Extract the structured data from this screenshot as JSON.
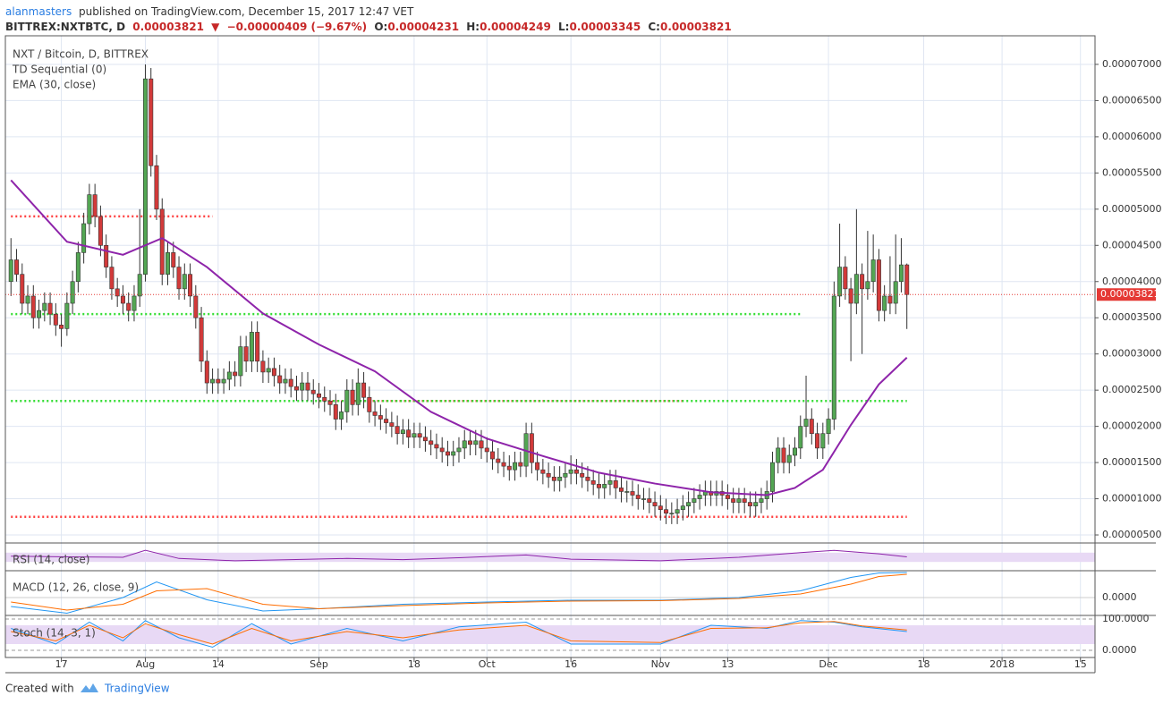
{
  "header": {
    "user": "alanmasters",
    "published": "published on TradingView.com, December 15, 2017 12:47 VET",
    "symbol": "BITTREX:NXTBTC, D",
    "last": "0.00003821",
    "arrow": "▼",
    "change": "−0.00000409 (−9.67%)",
    "o_label": "O:",
    "o": "0.00004231",
    "h_label": "H:",
    "h": "0.00004249",
    "l_label": "L:",
    "l": "0.00003345",
    "c_label": "C:",
    "c": "0.00003821"
  },
  "footer": {
    "created": "Created with",
    "brand": "TradingView"
  },
  "chart_data": {
    "type": "candlestick",
    "title": "NXT / Bitcoin, D, BITTREX",
    "study": "TD Sequential (0)",
    "up_color": "#53a653",
    "down_color": "#d23a3a",
    "grid": true,
    "xlim": [
      -1,
      193.6
    ],
    "ylim": [
      3.89e-06,
      7.395e-05
    ],
    "xticks": [
      {
        "value": 9,
        "label": "17"
      },
      {
        "value": 24,
        "label": "Aug"
      },
      {
        "value": 37,
        "label": "14"
      },
      {
        "value": 55,
        "label": "Sep"
      },
      {
        "value": 72,
        "label": "18"
      },
      {
        "value": 85,
        "label": "Oct"
      },
      {
        "value": 100,
        "label": "16"
      },
      {
        "value": 116,
        "label": "Nov"
      },
      {
        "value": 128,
        "label": "13"
      },
      {
        "value": 146,
        "label": "Dec"
      },
      {
        "value": 163,
        "label": "18"
      },
      {
        "value": 177,
        "label": "2018"
      },
      {
        "value": 191,
        "label": "15"
      }
    ],
    "yticks": [
      {
        "value": 5e-06,
        "label": "0.00000500"
      },
      {
        "value": 1e-05,
        "label": "0.00001000"
      },
      {
        "value": 1.5e-05,
        "label": "0.00001500"
      },
      {
        "value": 2e-05,
        "label": "0.00002000"
      },
      {
        "value": 2.5e-05,
        "label": "0.00002500"
      },
      {
        "value": 3e-05,
        "label": "0.00003000"
      },
      {
        "value": 3.5e-05,
        "label": "0.00003500"
      },
      {
        "value": 4e-05,
        "label": "0.00004000"
      },
      {
        "value": 4.5e-05,
        "label": "0.00004500"
      },
      {
        "value": 5e-05,
        "label": "0.00005000"
      },
      {
        "value": 5.5e-05,
        "label": "0.00005500"
      },
      {
        "value": 6e-05,
        "label": "0.00006000"
      },
      {
        "value": 6.5e-05,
        "label": "0.00006500"
      },
      {
        "value": 7e-05,
        "label": "0.00007000"
      }
    ],
    "last_price": {
      "value": 3.821e-05,
      "label": "0.00003821",
      "color": "#e53935"
    },
    "x": [
      0,
      1,
      2,
      3,
      4,
      5,
      6,
      7,
      8,
      9,
      10,
      11,
      12,
      13,
      14,
      15,
      16,
      17,
      18,
      19,
      20,
      21,
      22,
      23,
      24,
      25,
      26,
      27,
      28,
      29,
      30,
      31,
      32,
      33,
      34,
      35,
      36,
      37,
      38,
      39,
      40,
      41,
      42,
      43,
      44,
      45,
      46,
      47,
      48,
      49,
      50,
      51,
      52,
      53,
      54,
      55,
      56,
      57,
      58,
      59,
      60,
      61,
      62,
      63,
      64,
      65,
      66,
      67,
      68,
      69,
      70,
      71,
      72,
      73,
      74,
      75,
      76,
      77,
      78,
      79,
      80,
      81,
      82,
      83,
      84,
      85,
      86,
      87,
      88,
      89,
      90,
      91,
      92,
      93,
      94,
      95,
      96,
      97,
      98,
      99,
      100,
      101,
      102,
      103,
      104,
      105,
      106,
      107,
      108,
      109,
      110,
      111,
      112,
      113,
      114,
      115,
      116,
      117,
      118,
      119,
      120,
      121,
      122,
      123,
      124,
      125,
      126,
      127,
      128,
      129,
      130,
      131,
      132,
      133,
      134,
      135,
      136,
      137,
      138,
      139,
      140,
      141,
      142,
      143,
      144,
      145,
      146,
      147,
      148,
      149,
      150,
      151,
      152,
      153,
      154,
      155,
      156,
      157,
      158,
      159,
      160
    ],
    "open": [
      4e-05,
      4.3e-05,
      4.1e-05,
      3.7e-05,
      3.8e-05,
      3.5e-05,
      3.6e-05,
      3.7e-05,
      3.55e-05,
      3.4e-05,
      3.35e-05,
      3.7e-05,
      4e-05,
      4.4e-05,
      4.8e-05,
      5.2e-05,
      4.9e-05,
      4.5e-05,
      4.2e-05,
      3.9e-05,
      3.8e-05,
      3.7e-05,
      3.6e-05,
      3.8e-05,
      4.1e-05,
      6.8e-05,
      5.6e-05,
      5e-05,
      4.1e-05,
      4.4e-05,
      4.2e-05,
      3.9e-05,
      4.1e-05,
      3.8e-05,
      3.5e-05,
      2.9e-05,
      2.6e-05,
      2.65e-05,
      2.6e-05,
      2.65e-05,
      2.75e-05,
      2.7e-05,
      3.1e-05,
      2.9e-05,
      3.3e-05,
      2.9e-05,
      2.75e-05,
      2.8e-05,
      2.7e-05,
      2.6e-05,
      2.65e-05,
      2.55e-05,
      2.5e-05,
      2.6e-05,
      2.5e-05,
      2.45e-05,
      2.4e-05,
      2.35e-05,
      2.3e-05,
      2.1e-05,
      2.2e-05,
      2.5e-05,
      2.3e-05,
      2.6e-05,
      2.4e-05,
      2.2e-05,
      2.15e-05,
      2.1e-05,
      2.05e-05,
      2e-05,
      1.9e-05,
      1.95e-05,
      1.85e-05,
      1.9e-05,
      1.85e-05,
      1.8e-05,
      1.75e-05,
      1.7e-05,
      1.65e-05,
      1.6e-05,
      1.65e-05,
      1.7e-05,
      1.8e-05,
      1.75e-05,
      1.8e-05,
      1.7e-05,
      1.65e-05,
      1.55e-05,
      1.5e-05,
      1.45e-05,
      1.4e-05,
      1.5e-05,
      1.45e-05,
      1.9e-05,
      1.5e-05,
      1.4e-05,
      1.35e-05,
      1.3e-05,
      1.25e-05,
      1.3e-05,
      1.35e-05,
      1.4e-05,
      1.35e-05,
      1.3e-05,
      1.25e-05,
      1.2e-05,
      1.15e-05,
      1.2e-05,
      1.25e-05,
      1.15e-05,
      1.1e-05,
      1.1e-05,
      1.05e-05,
      1e-05,
      1e-05,
      9.5e-06,
      9e-06,
      8.5e-06,
      8e-06,
      8e-06,
      8.5e-06,
      9e-06,
      9.5e-06,
      1e-05,
      1.05e-05,
      1.1e-05,
      1.05e-05,
      1.1e-05,
      1.05e-05,
      1e-05,
      9.5e-06,
      1e-05,
      9.5e-06,
      9e-06,
      9.5e-06,
      1e-05,
      1.1e-05,
      1.5e-05,
      1.7e-05,
      1.5e-05,
      1.6e-05,
      1.7e-05,
      2e-05,
      2.1e-05,
      1.9e-05,
      1.7e-05,
      1.9e-05,
      2.1e-05,
      3.8e-05,
      4.2e-05,
      3.9e-05,
      3.7e-05,
      4.1e-05,
      3.9e-05,
      4e-05,
      4.3e-05,
      3.6e-05,
      3.8e-05,
      3.7e-05,
      4e-05,
      4.231e-05
    ],
    "high": [
      4.6e-05,
      4.45e-05,
      4.25e-05,
      3.95e-05,
      3.95e-05,
      3.75e-05,
      3.85e-05,
      3.85e-05,
      3.7e-05,
      3.55e-05,
      3.85e-05,
      4.15e-05,
      4.55e-05,
      4.95e-05,
      5.35e-05,
      5.35e-05,
      5.05e-05,
      4.65e-05,
      4.35e-05,
      4.05e-05,
      3.95e-05,
      3.85e-05,
      3.95e-05,
      5e-05,
      7e-05,
      6.95e-05,
      5.75e-05,
      5.15e-05,
      4.55e-05,
      4.55e-05,
      4.35e-05,
      4.25e-05,
      4.25e-05,
      3.95e-05,
      3.65e-05,
      3.05e-05,
      2.8e-05,
      2.8e-05,
      2.8e-05,
      2.9e-05,
      2.9e-05,
      3.25e-05,
      3.25e-05,
      3.45e-05,
      3.45e-05,
      3.05e-05,
      2.95e-05,
      2.95e-05,
      2.85e-05,
      2.8e-05,
      2.8e-05,
      2.7e-05,
      2.75e-05,
      2.75e-05,
      2.65e-05,
      2.6e-05,
      2.55e-05,
      2.5e-05,
      2.45e-05,
      2.35e-05,
      2.65e-05,
      2.65e-05,
      2.8e-05,
      2.75e-05,
      2.55e-05,
      2.35e-05,
      2.3e-05,
      2.25e-05,
      2.2e-05,
      2.15e-05,
      2.1e-05,
      2.1e-05,
      2.05e-05,
      2.05e-05,
      2e-05,
      1.95e-05,
      1.9e-05,
      1.85e-05,
      1.8e-05,
      1.8e-05,
      1.85e-05,
      1.95e-05,
      1.95e-05,
      1.95e-05,
      1.95e-05,
      1.85e-05,
      1.8e-05,
      1.7e-05,
      1.65e-05,
      1.6e-05,
      1.65e-05,
      1.65e-05,
      2.05e-05,
      2.05e-05,
      1.65e-05,
      1.55e-05,
      1.5e-05,
      1.45e-05,
      1.45e-05,
      1.5e-05,
      1.6e-05,
      1.55e-05,
      1.5e-05,
      1.45e-05,
      1.4e-05,
      1.35e-05,
      1.35e-05,
      1.4e-05,
      1.4e-05,
      1.3e-05,
      1.25e-05,
      1.25e-05,
      1.2e-05,
      1.15e-05,
      1.15e-05,
      1.1e-05,
      1.05e-05,
      1e-05,
      9.5e-06,
      1e-05,
      1.05e-05,
      1.1e-05,
      1.15e-05,
      1.2e-05,
      1.25e-05,
      1.25e-05,
      1.25e-05,
      1.25e-05,
      1.2e-05,
      1.15e-05,
      1.15e-05,
      1.15e-05,
      1.1e-05,
      1.1e-05,
      1.15e-05,
      1.25e-05,
      1.65e-05,
      1.85e-05,
      1.85e-05,
      1.75e-05,
      1.85e-05,
      2.15e-05,
      2.7e-05,
      2.25e-05,
      2.05e-05,
      2.05e-05,
      2.25e-05,
      4e-05,
      4.8e-05,
      4.35e-05,
      4.05e-05,
      5e-05,
      4.25e-05,
      4.7e-05,
      4.65e-05,
      4.45e-05,
      3.95e-05,
      4.35e-05,
      4.65e-05,
      4.6e-05,
      4.249e-05
    ],
    "low": [
      3.8e-05,
      4e-05,
      3.55e-05,
      3.55e-05,
      3.35e-05,
      3.35e-05,
      3.45e-05,
      3.4e-05,
      3.25e-05,
      3.1e-05,
      3.25e-05,
      3.55e-05,
      3.85e-05,
      4.25e-05,
      4.65e-05,
      4.75e-05,
      4.35e-05,
      4.05e-05,
      3.75e-05,
      3.65e-05,
      3.55e-05,
      3.45e-05,
      3.45e-05,
      3.65e-05,
      4e-05,
      5.45e-05,
      4.85e-05,
      3.95e-05,
      3.95e-05,
      4.05e-05,
      3.75e-05,
      3.75e-05,
      3.65e-05,
      3.35e-05,
      2.75e-05,
      2.45e-05,
      2.45e-05,
      2.45e-05,
      2.45e-05,
      2.5e-05,
      2.55e-05,
      2.55e-05,
      2.75e-05,
      2.75e-05,
      2.75e-05,
      2.6e-05,
      2.6e-05,
      2.55e-05,
      2.45e-05,
      2.45e-05,
      2.4e-05,
      2.35e-05,
      2.35e-05,
      2.35e-05,
      2.3e-05,
      2.25e-05,
      2.2e-05,
      2.15e-05,
      1.95e-05,
      1.95e-05,
      2.05e-05,
      2.15e-05,
      2.15e-05,
      2.25e-05,
      2.05e-05,
      2e-05,
      1.95e-05,
      1.9e-05,
      1.85e-05,
      1.75e-05,
      1.75e-05,
      1.7e-05,
      1.7e-05,
      1.7e-05,
      1.65e-05,
      1.6e-05,
      1.55e-05,
      1.5e-05,
      1.45e-05,
      1.45e-05,
      1.5e-05,
      1.55e-05,
      1.6e-05,
      1.6e-05,
      1.55e-05,
      1.5e-05,
      1.4e-05,
      1.35e-05,
      1.3e-05,
      1.25e-05,
      1.25e-05,
      1.3e-05,
      1.3e-05,
      1.35e-05,
      1.25e-05,
      1.2e-05,
      1.15e-05,
      1.1e-05,
      1.1e-05,
      1.15e-05,
      1.2e-05,
      1.2e-05,
      1.15e-05,
      1.1e-05,
      1.05e-05,
      1e-05,
      1e-05,
      1.05e-05,
      1e-05,
      9.5e-06,
      9.5e-06,
      9e-06,
      8.5e-06,
      8.5e-06,
      8e-06,
      7.5e-06,
      7e-06,
      6.5e-06,
      6.5e-06,
      6.5e-06,
      7e-06,
      7.5e-06,
      8e-06,
      8.5e-06,
      9e-06,
      9e-06,
      9e-06,
      9e-06,
      8.5e-06,
      8e-06,
      8e-06,
      8e-06,
      7.5e-06,
      7.5e-06,
      8e-06,
      8.5e-06,
      9.5e-06,
      1.35e-05,
      1.35e-05,
      1.35e-05,
      1.45e-05,
      1.55e-05,
      1.85e-05,
      1.75e-05,
      1.55e-05,
      1.55e-05,
      1.75e-05,
      1.95e-05,
      3.65e-05,
      3.75e-05,
      2.9e-05,
      3.55e-05,
      3e-05,
      3.75e-05,
      3.85e-05,
      3.45e-05,
      3.45e-05,
      3.55e-05,
      3.55e-05,
      3.85e-05,
      3.345e-05
    ],
    "close": [
      4.3e-05,
      4.1e-05,
      3.7e-05,
      3.8e-05,
      3.5e-05,
      3.6e-05,
      3.7e-05,
      3.55e-05,
      3.4e-05,
      3.35e-05,
      3.7e-05,
      4e-05,
      4.4e-05,
      4.8e-05,
      5.2e-05,
      4.9e-05,
      4.5e-05,
      4.2e-05,
      3.9e-05,
      3.8e-05,
      3.7e-05,
      3.6e-05,
      3.8e-05,
      4.1e-05,
      6.8e-05,
      5.6e-05,
      5e-05,
      4.1e-05,
      4.4e-05,
      4.2e-05,
      3.9e-05,
      4.1e-05,
      3.8e-05,
      3.5e-05,
      2.9e-05,
      2.6e-05,
      2.65e-05,
      2.6e-05,
      2.65e-05,
      2.75e-05,
      2.7e-05,
      3.1e-05,
      2.9e-05,
      3.3e-05,
      2.9e-05,
      2.75e-05,
      2.8e-05,
      2.7e-05,
      2.6e-05,
      2.65e-05,
      2.55e-05,
      2.5e-05,
      2.6e-05,
      2.5e-05,
      2.45e-05,
      2.4e-05,
      2.35e-05,
      2.3e-05,
      2.1e-05,
      2.2e-05,
      2.5e-05,
      2.3e-05,
      2.6e-05,
      2.4e-05,
      2.2e-05,
      2.15e-05,
      2.1e-05,
      2.05e-05,
      2e-05,
      1.9e-05,
      1.95e-05,
      1.85e-05,
      1.9e-05,
      1.85e-05,
      1.8e-05,
      1.75e-05,
      1.7e-05,
      1.65e-05,
      1.6e-05,
      1.65e-05,
      1.7e-05,
      1.8e-05,
      1.75e-05,
      1.8e-05,
      1.7e-05,
      1.65e-05,
      1.55e-05,
      1.5e-05,
      1.45e-05,
      1.4e-05,
      1.5e-05,
      1.45e-05,
      1.9e-05,
      1.5e-05,
      1.4e-05,
      1.35e-05,
      1.3e-05,
      1.25e-05,
      1.3e-05,
      1.35e-05,
      1.4e-05,
      1.35e-05,
      1.3e-05,
      1.25e-05,
      1.2e-05,
      1.15e-05,
      1.2e-05,
      1.25e-05,
      1.15e-05,
      1.1e-05,
      1.1e-05,
      1.05e-05,
      1e-05,
      1e-05,
      9.5e-06,
      9e-06,
      8.5e-06,
      8e-06,
      8e-06,
      8.5e-06,
      9e-06,
      9.5e-06,
      1e-05,
      1.05e-05,
      1.1e-05,
      1.05e-05,
      1.1e-05,
      1.05e-05,
      1e-05,
      9.5e-06,
      1e-05,
      9.5e-06,
      9e-06,
      9.5e-06,
      1e-05,
      1.1e-05,
      1.5e-05,
      1.7e-05,
      1.5e-05,
      1.6e-05,
      1.7e-05,
      2e-05,
      2.1e-05,
      1.9e-05,
      1.7e-05,
      1.9e-05,
      2.1e-05,
      3.8e-05,
      4.2e-05,
      3.9e-05,
      3.7e-05,
      4.1e-05,
      3.9e-05,
      4e-05,
      4.3e-05,
      3.6e-05,
      3.8e-05,
      3.7e-05,
      4e-05,
      4.231e-05,
      3.821e-05
    ],
    "levels": [
      {
        "value": 4.9e-05,
        "color": "#ff4040",
        "from": 0,
        "to": 36
      },
      {
        "value": 3.55e-05,
        "color": "#33dd33",
        "from": 0,
        "to": 141
      },
      {
        "value": 2.35e-05,
        "color": "#ff4040",
        "from": 55,
        "to": 120
      },
      {
        "value": 2.35e-05,
        "color": "#33dd33",
        "from": 0,
        "to": 160
      },
      {
        "value": 7.5e-06,
        "color": "#ff4040",
        "from": 0,
        "to": 160
      }
    ],
    "ema": {
      "name": "EMA (30, close)",
      "color": "#8e24aa",
      "x": [
        0,
        10,
        20,
        27,
        35,
        45,
        55,
        65,
        75,
        85,
        95,
        105,
        115,
        125,
        135,
        140,
        145,
        150,
        155,
        160
      ],
      "values": [
        5.4e-05,
        4.55e-05,
        4.37e-05,
        4.6e-05,
        4.2e-05,
        3.56e-05,
        3.13e-05,
        2.76e-05,
        2.2e-05,
        1.83e-05,
        1.59e-05,
        1.36e-05,
        1.21e-05,
        1.09e-05,
        1.05e-05,
        1.15e-05,
        1.4e-05,
        2.02e-05,
        2.58e-05,
        2.95e-05
      ]
    },
    "rsi": {
      "name": "RSI (14, close)",
      "color": "#8e24aa",
      "band": [
        30,
        70
      ],
      "ylim": [
        0,
        100
      ],
      "x": [
        0,
        10,
        20,
        24,
        30,
        40,
        50,
        60,
        70,
        80,
        92,
        100,
        116,
        130,
        141,
        147,
        155,
        160
      ],
      "values": [
        55,
        52,
        50,
        80,
        45,
        35,
        40,
        45,
        40,
        48,
        60,
        42,
        35,
        50,
        70,
        80,
        65,
        52
      ]
    },
    "macd": {
      "name": "MACD (12, 26, close, 9)",
      "ylim": [
        -4e-06,
        6e-06
      ],
      "yticks": [
        {
          "value": 0,
          "label": "0.0000"
        }
      ],
      "series": [
        {
          "color": "#2196f3",
          "x": [
            0,
            10,
            20,
            26,
            35,
            45,
            55,
            70,
            85,
            100,
            116,
            130,
            141,
            150,
            155,
            160
          ],
          "values": [
            -2e-06,
            -3.5e-06,
            0,
            3.5e-06,
            -5e-07,
            -3e-06,
            -2.5e-06,
            -1.5e-06,
            -1e-06,
            -6e-07,
            -6e-07,
            0,
            1.5e-06,
            4.5e-06,
            5.5e-06,
            5.6e-06
          ]
        },
        {
          "color": "#ff6d00",
          "x": [
            0,
            10,
            20,
            26,
            35,
            45,
            55,
            70,
            85,
            100,
            116,
            130,
            141,
            150,
            155,
            160
          ],
          "values": [
            -1e-06,
            -2.8e-06,
            -1.5e-06,
            1.5e-06,
            2e-06,
            -1.5e-06,
            -2.5e-06,
            -1.8e-06,
            -1.2e-06,
            -8e-07,
            -7e-07,
            -2e-07,
            8e-07,
            3e-06,
            4.7e-06,
            5.2e-06
          ]
        }
      ]
    },
    "stoch": {
      "name": "Stoch (14, 3, 1)",
      "band": [
        20,
        80
      ],
      "ylim": [
        0,
        100
      ],
      "yticks": [
        {
          "value": 100,
          "label": "100.0000"
        },
        {
          "value": 0,
          "label": "0.0000"
        }
      ],
      "series": [
        {
          "color": "#2196f3",
          "x": [
            0,
            8,
            14,
            20,
            24,
            30,
            36,
            43,
            50,
            60,
            70,
            80,
            92,
            100,
            116,
            125,
            135,
            141,
            147,
            152,
            160
          ],
          "values": [
            70,
            20,
            90,
            30,
            95,
            40,
            10,
            85,
            20,
            70,
            30,
            75,
            90,
            20,
            20,
            80,
            70,
            95,
            90,
            75,
            60
          ]
        },
        {
          "color": "#ff6d00",
          "x": [
            0,
            8,
            14,
            20,
            24,
            30,
            36,
            43,
            50,
            60,
            70,
            80,
            92,
            100,
            116,
            125,
            135,
            141,
            147,
            152,
            160
          ],
          "values": [
            60,
            30,
            80,
            40,
            85,
            50,
            20,
            70,
            30,
            60,
            40,
            65,
            80,
            30,
            25,
            70,
            72,
            88,
            92,
            78,
            65
          ]
        }
      ]
    }
  }
}
